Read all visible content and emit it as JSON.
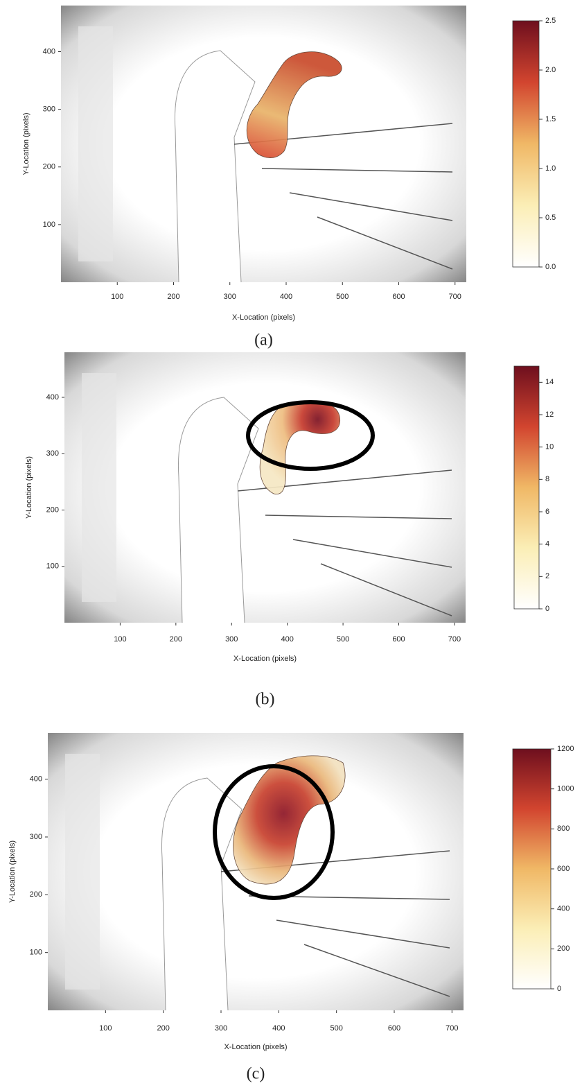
{
  "chart_data": [
    {
      "type": "heatmap",
      "caption": "(a)",
      "x_label": "X-Location (pixels)",
      "y_label": "Y-Location (pixels)",
      "xlim": [
        0,
        720
      ],
      "ylim": [
        0,
        480
      ],
      "xticks": [
        100,
        200,
        300,
        400,
        500,
        600,
        700
      ],
      "yticks": [
        100,
        200,
        300,
        400
      ],
      "clim": [
        0,
        2.5
      ],
      "cticks": [
        {
          "value": 0,
          "label": "0.0"
        },
        0.5,
        {
          "value": 1,
          "label": "1.0"
        },
        1.5,
        {
          "value": 2,
          "label": "2.0"
        },
        2.5
      ]
    },
    {
      "type": "heatmap",
      "caption": "(b)",
      "x_label": "X-Location (pixels)",
      "y_label": "Y-Location (pixels)",
      "xlim": [
        0,
        720
      ],
      "ylim": [
        0,
        480
      ],
      "xticks": [
        100,
        200,
        300,
        400,
        500,
        600,
        700
      ],
      "yticks": [
        100,
        200,
        300,
        400
      ],
      "clim": [
        0,
        15
      ],
      "cticks": [
        0,
        2,
        4,
        6,
        8,
        10,
        12,
        14
      ]
    },
    {
      "type": "heatmap",
      "caption": "(c)",
      "x_label": "X-Location (pixels)",
      "y_label": "Y-Location (pixels)",
      "xlim": [
        0,
        720
      ],
      "ylim": [
        0,
        480
      ],
      "xticks": [
        100,
        200,
        300,
        400,
        500,
        600,
        700
      ],
      "yticks": [
        100,
        200,
        300,
        400
      ],
      "clim": [
        0,
        1200
      ],
      "cticks": [
        0,
        200,
        400,
        600,
        800,
        1000,
        1200
      ]
    }
  ]
}
